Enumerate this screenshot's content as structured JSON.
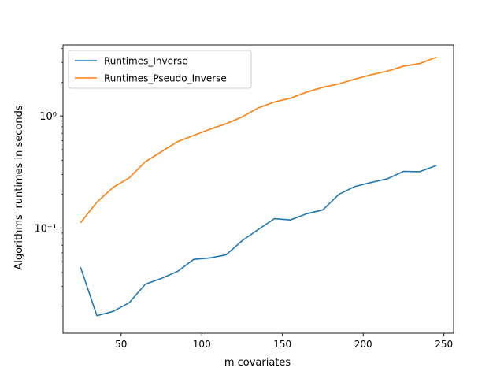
{
  "chart_data": {
    "type": "line",
    "title": "",
    "xlabel": "m covariates",
    "ylabel": "Algorithms' runtimes in seconds",
    "xlim": [
      14,
      256
    ],
    "ylim": [
      0.0115,
      4.3
    ],
    "yscale": "log",
    "grid": false,
    "legend_position": "top-left",
    "x_ticks": [
      50,
      100,
      150,
      200,
      250
    ],
    "x_tick_labels": [
      "50",
      "100",
      "150",
      "200",
      "250"
    ],
    "y_ticks": [
      0.1,
      1.0
    ],
    "y_tick_labels": [
      "10⁻¹",
      "10⁰"
    ],
    "x": [
      25,
      35,
      45,
      55,
      65,
      75,
      85,
      95,
      105,
      115,
      125,
      135,
      145,
      155,
      165,
      175,
      185,
      195,
      205,
      215,
      225,
      235,
      245
    ],
    "series": [
      {
        "name": "Runtimes_Inverse",
        "color": "#1f77b4",
        "values": [
          0.044,
          0.0165,
          0.018,
          0.0215,
          0.0315,
          0.0355,
          0.041,
          0.0525,
          0.054,
          0.0575,
          0.077,
          0.097,
          0.121,
          0.118,
          0.134,
          0.145,
          0.2,
          0.235,
          0.255,
          0.275,
          0.32,
          0.318,
          0.36
        ]
      },
      {
        "name": "Runtimes_Pseudo_Inverse",
        "color": "#ff7f0e",
        "values": [
          0.112,
          0.17,
          0.23,
          0.28,
          0.39,
          0.48,
          0.59,
          0.67,
          0.76,
          0.85,
          0.98,
          1.18,
          1.33,
          1.44,
          1.63,
          1.8,
          1.93,
          2.13,
          2.33,
          2.51,
          2.78,
          2.93,
          3.33
        ]
      }
    ]
  }
}
